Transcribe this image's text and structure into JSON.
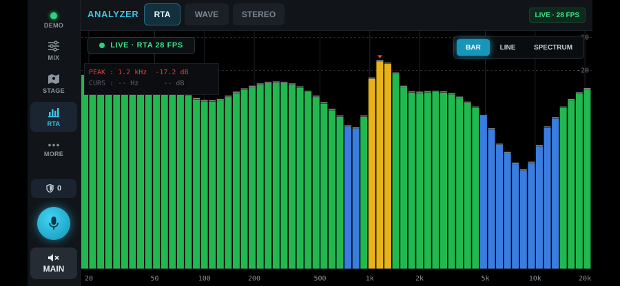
{
  "sidebar": {
    "items": [
      {
        "label": "DEMO",
        "icon": "status-dot-icon"
      },
      {
        "label": "MIX",
        "icon": "sliders-icon"
      },
      {
        "label": "STAGE",
        "icon": "map-icon"
      },
      {
        "label": "RTA",
        "icon": "bar-chart-icon",
        "active": true
      },
      {
        "label": "MORE",
        "icon": "ellipsis-icon"
      }
    ],
    "shield_count": "0",
    "main_label": "MAIN"
  },
  "header": {
    "title": "ANALYZER",
    "tabs": [
      {
        "label": "RTA",
        "active": true
      },
      {
        "label": "WAVE"
      },
      {
        "label": "STEREO"
      }
    ],
    "live_status": "LIVE · 28 FPS"
  },
  "plot": {
    "live_badge": "LIVE · RTA 28 FPS",
    "modes": [
      {
        "label": "BAR",
        "active": true
      },
      {
        "label": "LINE"
      },
      {
        "label": "SPECTRUM"
      }
    ],
    "readout": {
      "peak": "PEAK : 1.2 kHz  -17.2 dB",
      "cursor": "CURS : -- Hz      -- dB"
    }
  },
  "colors": {
    "accent": "#3fc3e3",
    "green_band": "#22b84f",
    "blue_band": "#3a7de0",
    "amber_band": "#e8b21a",
    "peak_marker": "#e0403f"
  },
  "chart_data": {
    "type": "bar",
    "x_scale": "log",
    "xlim": [
      18,
      22000
    ],
    "ylim": [
      -80,
      -8
    ],
    "y_ticks": [
      {
        "value": -10,
        "label": "-10"
      },
      {
        "value": -20,
        "label": "-20"
      }
    ],
    "x_ticks": [
      {
        "value": 20,
        "label": "20"
      },
      {
        "value": 50,
        "label": "50"
      },
      {
        "value": 100,
        "label": "100"
      },
      {
        "value": 200,
        "label": "200"
      },
      {
        "value": 500,
        "label": "500"
      },
      {
        "value": 1000,
        "label": "1k"
      },
      {
        "value": 2000,
        "label": "2k"
      },
      {
        "value": 5000,
        "label": "5k"
      },
      {
        "value": 10000,
        "label": "10k"
      },
      {
        "value": 20000,
        "label": "20k"
      }
    ],
    "peak": {
      "freq_hz": 1200,
      "level_db": -17.2
    },
    "bands": [
      {
        "level_db": -21.7,
        "color": "green"
      },
      {
        "level_db": -21.5,
        "color": "green"
      },
      {
        "level_db": -21.2,
        "color": "green"
      },
      {
        "level_db": -21.0,
        "color": "green"
      },
      {
        "level_db": -20.8,
        "color": "green"
      },
      {
        "level_db": -20.8,
        "color": "green"
      },
      {
        "level_db": -21.0,
        "color": "green"
      },
      {
        "level_db": -21.4,
        "color": "green"
      },
      {
        "level_db": -22.0,
        "color": "green"
      },
      {
        "level_db": -22.8,
        "color": "green"
      },
      {
        "level_db": -23.8,
        "color": "green"
      },
      {
        "level_db": -25.0,
        "color": "green"
      },
      {
        "level_db": -26.3,
        "color": "green"
      },
      {
        "level_db": -27.6,
        "color": "green"
      },
      {
        "level_db": -28.7,
        "color": "green"
      },
      {
        "level_db": -29.3,
        "color": "green"
      },
      {
        "level_db": -29.4,
        "color": "green"
      },
      {
        "level_db": -29.0,
        "color": "green"
      },
      {
        "level_db": -28.0,
        "color": "green"
      },
      {
        "level_db": -26.8,
        "color": "green"
      },
      {
        "level_db": -25.8,
        "color": "green"
      },
      {
        "level_db": -25.0,
        "color": "green"
      },
      {
        "level_db": -24.3,
        "color": "green"
      },
      {
        "level_db": -23.8,
        "color": "green"
      },
      {
        "level_db": -23.7,
        "color": "green"
      },
      {
        "level_db": -23.8,
        "color": "green"
      },
      {
        "level_db": -24.3,
        "color": "green"
      },
      {
        "level_db": -25.2,
        "color": "green"
      },
      {
        "level_db": -26.5,
        "color": "green"
      },
      {
        "level_db": -28.0,
        "color": "green"
      },
      {
        "level_db": -30.0,
        "color": "green"
      },
      {
        "level_db": -32.0,
        "color": "green"
      },
      {
        "level_db": -34.0,
        "color": "green"
      },
      {
        "level_db": -37.0,
        "color": "blue"
      },
      {
        "level_db": -37.6,
        "color": "blue"
      },
      {
        "level_db": -34.0,
        "color": "green"
      },
      {
        "level_db": -22.5,
        "color": "amber"
      },
      {
        "level_db": -17.2,
        "color": "amber"
      },
      {
        "level_db": -18.0,
        "color": "amber"
      },
      {
        "level_db": -21.0,
        "color": "green"
      },
      {
        "level_db": -25.0,
        "color": "green"
      },
      {
        "level_db": -26.7,
        "color": "green"
      },
      {
        "level_db": -26.8,
        "color": "green"
      },
      {
        "level_db": -26.6,
        "color": "green"
      },
      {
        "level_db": -26.5,
        "color": "green"
      },
      {
        "level_db": -26.7,
        "color": "green"
      },
      {
        "level_db": -27.2,
        "color": "green"
      },
      {
        "level_db": -28.3,
        "color": "green"
      },
      {
        "level_db": -29.8,
        "color": "green"
      },
      {
        "level_db": -31.3,
        "color": "green"
      },
      {
        "level_db": -33.8,
        "color": "blue"
      },
      {
        "level_db": -37.8,
        "color": "blue"
      },
      {
        "level_db": -42.5,
        "color": "blue"
      },
      {
        "level_db": -45.0,
        "color": "blue"
      },
      {
        "level_db": -48.3,
        "color": "blue"
      },
      {
        "level_db": -50.3,
        "color": "blue"
      },
      {
        "level_db": -48.0,
        "color": "blue"
      },
      {
        "level_db": -43.0,
        "color": "blue"
      },
      {
        "level_db": -37.3,
        "color": "blue"
      },
      {
        "level_db": -34.5,
        "color": "blue"
      },
      {
        "level_db": -31.3,
        "color": "green"
      },
      {
        "level_db": -29.0,
        "color": "green"
      },
      {
        "level_db": -27.0,
        "color": "green"
      },
      {
        "level_db": -25.7,
        "color": "green"
      }
    ]
  }
}
